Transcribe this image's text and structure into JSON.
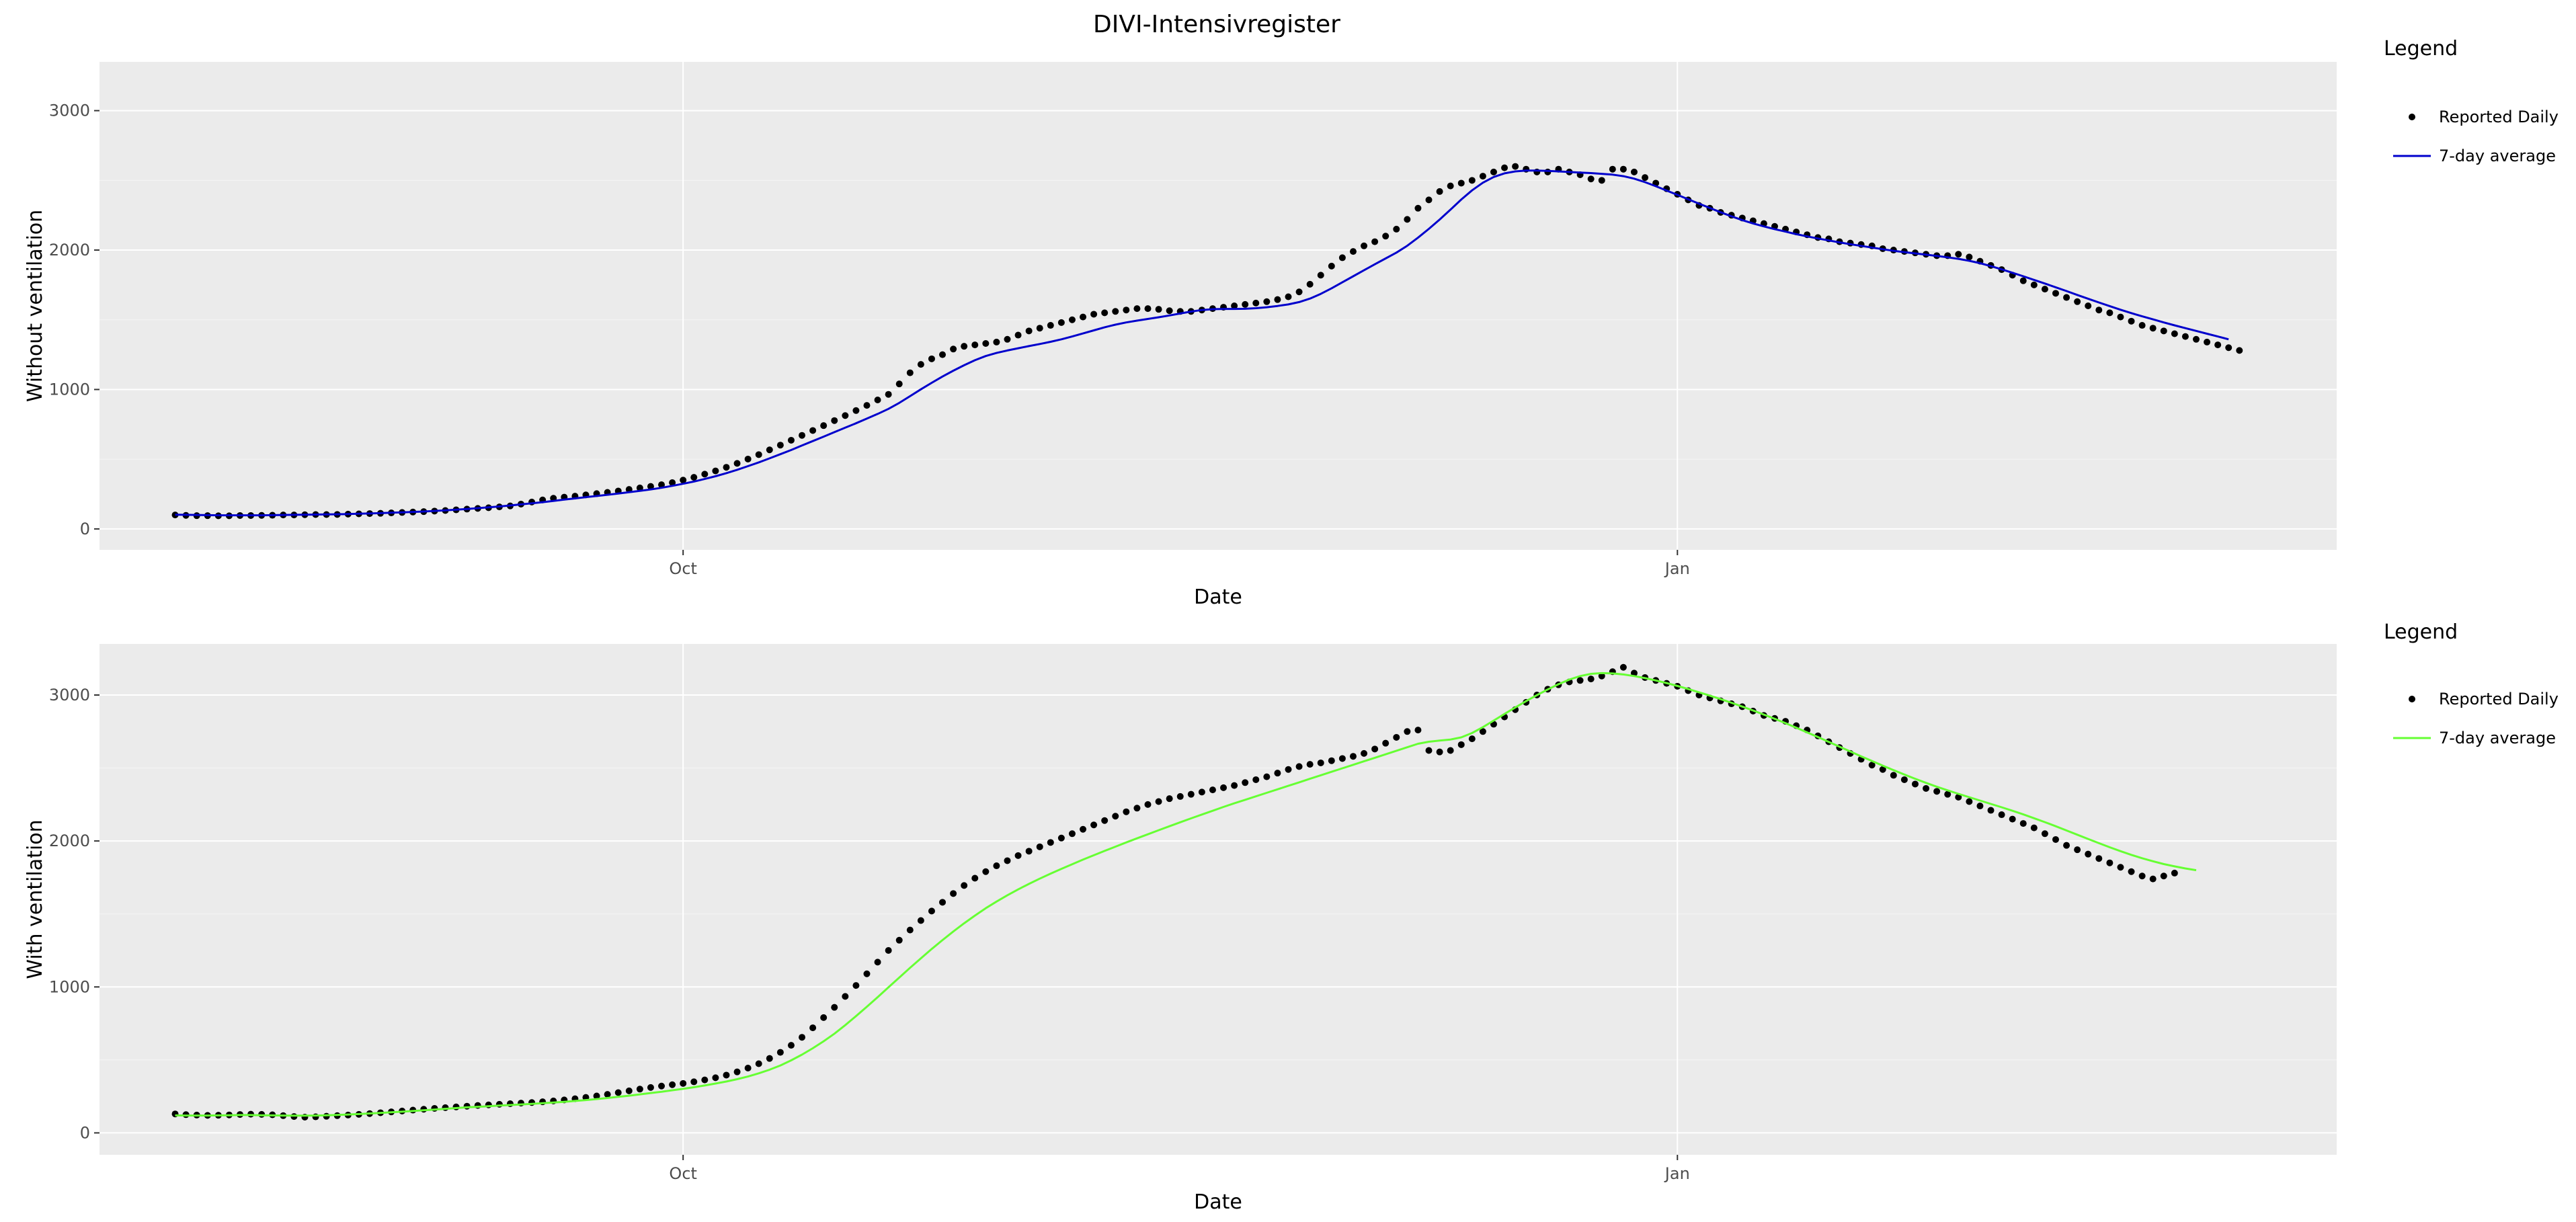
{
  "figure": {
    "title": "DIVI-Intensivregister"
  },
  "chart_data": [
    {
      "type": "scatter",
      "title": "DIVI-Intensivregister",
      "xlabel": "Date",
      "ylabel": "Without ventilation",
      "x_ticks": [
        "Oct",
        "Jan"
      ],
      "y_ticks": [
        0,
        1000,
        2000,
        3000
      ],
      "xlim": [
        "2020-08-08",
        "2021-03-03"
      ],
      "ylim": [
        -150,
        3350
      ],
      "grid": true,
      "legend": {
        "title": "Legend",
        "position": "right"
      },
      "dates": [
        "2020-08-15",
        "2020-08-16",
        "2020-08-17",
        "2020-08-18",
        "2020-08-19",
        "2020-08-20",
        "2020-08-21",
        "2020-08-22",
        "2020-08-23",
        "2020-08-24",
        "2020-08-25",
        "2020-08-26",
        "2020-08-27",
        "2020-08-28",
        "2020-08-29",
        "2020-08-30",
        "2020-08-31",
        "2020-09-01",
        "2020-09-02",
        "2020-09-03",
        "2020-09-04",
        "2020-09-05",
        "2020-09-06",
        "2020-09-07",
        "2020-09-08",
        "2020-09-09",
        "2020-09-10",
        "2020-09-11",
        "2020-09-12",
        "2020-09-13",
        "2020-09-14",
        "2020-09-15",
        "2020-09-16",
        "2020-09-17",
        "2020-09-18",
        "2020-09-19",
        "2020-09-20",
        "2020-09-21",
        "2020-09-22",
        "2020-09-23",
        "2020-09-24",
        "2020-09-25",
        "2020-09-26",
        "2020-09-27",
        "2020-09-28",
        "2020-09-29",
        "2020-09-30",
        "2020-10-01",
        "2020-10-02",
        "2020-10-03",
        "2020-10-04",
        "2020-10-05",
        "2020-10-06",
        "2020-10-07",
        "2020-10-08",
        "2020-10-09",
        "2020-10-10",
        "2020-10-11",
        "2020-10-12",
        "2020-10-13",
        "2020-10-14",
        "2020-10-15",
        "2020-10-16",
        "2020-10-17",
        "2020-10-18",
        "2020-10-19",
        "2020-10-20",
        "2020-10-21",
        "2020-10-22",
        "2020-10-23",
        "2020-10-24",
        "2020-10-25",
        "2020-10-26",
        "2020-10-27",
        "2020-10-28",
        "2020-10-29",
        "2020-10-30",
        "2020-10-31",
        "2020-11-01",
        "2020-11-02",
        "2020-11-03",
        "2020-11-04",
        "2020-11-05",
        "2020-11-06",
        "2020-11-07",
        "2020-11-08",
        "2020-11-09",
        "2020-11-10",
        "2020-11-11",
        "2020-11-12",
        "2020-11-13",
        "2020-11-14",
        "2020-11-15",
        "2020-11-16",
        "2020-11-17",
        "2020-11-18",
        "2020-11-19",
        "2020-11-20",
        "2020-11-21",
        "2020-11-22",
        "2020-11-23",
        "2020-11-24",
        "2020-11-25",
        "2020-11-26",
        "2020-11-27",
        "2020-11-28",
        "2020-11-29",
        "2020-11-30",
        "2020-12-01",
        "2020-12-02",
        "2020-12-03",
        "2020-12-04",
        "2020-12-05",
        "2020-12-06",
        "2020-12-07",
        "2020-12-08",
        "2020-12-09",
        "2020-12-10",
        "2020-12-11",
        "2020-12-12",
        "2020-12-13",
        "2020-12-14",
        "2020-12-15",
        "2020-12-16",
        "2020-12-17",
        "2020-12-18",
        "2020-12-19",
        "2020-12-20",
        "2020-12-21",
        "2020-12-22",
        "2020-12-23",
        "2020-12-24",
        "2020-12-25",
        "2020-12-26",
        "2020-12-27",
        "2020-12-28",
        "2020-12-29",
        "2020-12-30",
        "2020-12-31",
        "2021-01-01",
        "2021-01-02",
        "2021-01-03",
        "2021-01-04",
        "2021-01-05",
        "2021-01-06",
        "2021-01-07",
        "2021-01-08",
        "2021-01-09",
        "2021-01-10",
        "2021-01-11",
        "2021-01-12",
        "2021-01-13",
        "2021-01-14",
        "2021-01-15",
        "2021-01-16",
        "2021-01-17",
        "2021-01-18",
        "2021-01-19",
        "2021-01-20",
        "2021-01-21",
        "2021-01-22",
        "2021-01-23",
        "2021-01-24",
        "2021-01-25",
        "2021-01-26",
        "2021-01-27",
        "2021-01-28",
        "2021-01-29",
        "2021-01-30",
        "2021-01-31",
        "2021-02-01",
        "2021-02-02",
        "2021-02-03",
        "2021-02-04",
        "2021-02-05",
        "2021-02-06",
        "2021-02-07",
        "2021-02-08",
        "2021-02-09",
        "2021-02-10",
        "2021-02-11",
        "2021-02-12",
        "2021-02-13",
        "2021-02-14",
        "2021-02-15",
        "2021-02-16",
        "2021-02-17",
        "2021-02-18",
        "2021-02-19",
        "2021-02-20",
        "2021-02-21",
        "2021-02-22",
        "2021-02-23",
        "2021-02-24",
        "2021-02-25"
      ],
      "series": [
        {
          "name": "Reported Daily",
          "style": "points",
          "color": "#000000",
          "values": [
            100,
            97,
            95,
            95,
            94,
            94,
            96,
            96,
            97,
            98,
            100,
            100,
            102,
            103,
            103,
            104,
            106,
            108,
            110,
            112,
            115,
            118,
            121,
            124,
            128,
            132,
            137,
            142,
            147,
            152,
            158,
            165,
            178,
            193,
            208,
            220,
            228,
            235,
            244,
            253,
            262,
            272,
            283,
            294,
            305,
            317,
            332,
            350,
            370,
            393,
            416,
            442,
            470,
            501,
            533,
            567,
            601,
            636,
            671,
            706,
            741,
            777,
            813,
            849,
            886,
            925,
            965,
            1040,
            1120,
            1180,
            1220,
            1250,
            1290,
            1310,
            1320,
            1330,
            1340,
            1360,
            1390,
            1420,
            1440,
            1460,
            1480,
            1500,
            1520,
            1540,
            1550,
            1560,
            1570,
            1580,
            1580,
            1575,
            1565,
            1560,
            1560,
            1570,
            1580,
            1590,
            1600,
            1610,
            1620,
            1630,
            1645,
            1665,
            1700,
            1755,
            1820,
            1885,
            1945,
            1990,
            2030,
            2060,
            2100,
            2150,
            2220,
            2300,
            2360,
            2420,
            2460,
            2480,
            2500,
            2530,
            2560,
            2590,
            2600,
            2580,
            2560,
            2560,
            2580,
            2560,
            2540,
            2510,
            2500,
            2580,
            2580,
            2560,
            2520,
            2480,
            2440,
            2400,
            2360,
            2320,
            2300,
            2270,
            2250,
            2230,
            2210,
            2190,
            2170,
            2150,
            2130,
            2110,
            2090,
            2080,
            2060,
            2050,
            2040,
            2030,
            2010,
            2000,
            1990,
            1980,
            1970,
            1960,
            1960,
            1970,
            1950,
            1920,
            1890,
            1860,
            1820,
            1780,
            1750,
            1720,
            1690,
            1660,
            1630,
            1600,
            1570,
            1550,
            1520,
            1490,
            1460,
            1440,
            1420,
            1400,
            1380,
            1360,
            1340,
            1320,
            1300,
            1280
          ]
        },
        {
          "name": "7-day average",
          "style": "line",
          "color": "#0000cc",
          "values": [
            102,
            101,
            100,
            99,
            98,
            98,
            98,
            98,
            98,
            99,
            100,
            101,
            102,
            103,
            104,
            105,
            107,
            109,
            111,
            113,
            116,
            119,
            122,
            125,
            129,
            133,
            138,
            143,
            149,
            155,
            161,
            168,
            176,
            184,
            192,
            201,
            210,
            219,
            228,
            236,
            245,
            254,
            263,
            273,
            283,
            295,
            309,
            324,
            340,
            358,
            378,
            400,
            424,
            450,
            477,
            506,
            536,
            566,
            598,
            630,
            662,
            694,
            726,
            758,
            791,
            825,
            861,
            904,
            952,
            1001,
            1048,
            1093,
            1135,
            1174,
            1210,
            1240,
            1262,
            1280,
            1296,
            1311,
            1326,
            1342,
            1360,
            1380,
            1402,
            1424,
            1446,
            1465,
            1481,
            1494,
            1506,
            1518,
            1531,
            1545,
            1559,
            1570,
            1576,
            1578,
            1578,
            1579,
            1583,
            1590,
            1599,
            1610,
            1627,
            1652,
            1686,
            1726,
            1769,
            1812,
            1855,
            1898,
            1940,
            1982,
            2031,
            2089,
            2152,
            2219,
            2290,
            2362,
            2428,
            2483,
            2524,
            2550,
            2564,
            2570,
            2570,
            2568,
            2564,
            2560,
            2556,
            2552,
            2547,
            2541,
            2530,
            2512,
            2487,
            2458,
            2427,
            2396,
            2364,
            2333,
            2302,
            2271,
            2242,
            2215,
            2191,
            2170,
            2150,
            2132,
            2114,
            2098,
            2083,
            2069,
            2055,
            2042,
            2030,
            2018,
            2006,
            1995,
            1985,
            1976,
            1967,
            1958,
            1948,
            1937,
            1923,
            1906,
            1885,
            1862,
            1837,
            1812,
            1786,
            1760,
            1733,
            1706,
            1678,
            1651,
            1624,
            1598,
            1572,
            1548,
            1525,
            1503,
            1481,
            1460,
            1440,
            1420,
            1400,
            1380,
            1360
          ]
        }
      ]
    },
    {
      "type": "scatter",
      "xlabel": "Date",
      "ylabel": "With ventilation",
      "x_ticks": [
        "Oct",
        "Jan"
      ],
      "y_ticks": [
        0,
        1000,
        2000,
        3000
      ],
      "xlim": [
        "2020-08-08",
        "2021-03-03"
      ],
      "ylim": [
        -150,
        3350
      ],
      "grid": true,
      "legend": {
        "title": "Legend",
        "position": "right"
      },
      "series": [
        {
          "name": "Reported Daily",
          "style": "points",
          "color": "#000000",
          "values": [
            130,
            125,
            122,
            120,
            121,
            123,
            126,
            128,
            127,
            124,
            118,
            112,
            108,
            110,
            114,
            118,
            122,
            127,
            132,
            138,
            144,
            150,
            156,
            162,
            168,
            173,
            178,
            183,
            188,
            192,
            196,
            200,
            204,
            208,
            213,
            219,
            226,
            234,
            243,
            253,
            264,
            276,
            288,
            300,
            311,
            321,
            330,
            339,
            350,
            363,
            378,
            396,
            418,
            444,
            474,
            510,
            552,
            600,
            655,
            720,
            790,
            860,
            935,
            1010,
            1090,
            1170,
            1250,
            1320,
            1390,
            1455,
            1520,
            1580,
            1640,
            1695,
            1745,
            1790,
            1830,
            1865,
            1900,
            1930,
            1960,
            1990,
            2020,
            2050,
            2080,
            2110,
            2140,
            2170,
            2200,
            2225,
            2250,
            2270,
            2290,
            2305,
            2320,
            2335,
            2350,
            2365,
            2380,
            2400,
            2420,
            2440,
            2465,
            2490,
            2510,
            2525,
            2535,
            2550,
            2565,
            2580,
            2600,
            2630,
            2670,
            2710,
            2750,
            2760,
            2620,
            2610,
            2620,
            2660,
            2700,
            2750,
            2800,
            2850,
            2900,
            2950,
            3000,
            3040,
            3070,
            3090,
            3100,
            3110,
            3130,
            3160,
            3190,
            3150,
            3120,
            3100,
            3080,
            3060,
            3030,
            3000,
            2980,
            2960,
            2940,
            2920,
            2890,
            2860,
            2840,
            2820,
            2790,
            2760,
            2720,
            2680,
            2640,
            2600,
            2560,
            2520,
            2490,
            2450,
            2420,
            2390,
            2360,
            2340,
            2320,
            2300,
            2270,
            2240,
            2210,
            2180,
            2150,
            2120,
            2090,
            2050,
            2010,
            1970,
            1940,
            1910,
            1880,
            1850,
            1820,
            1790,
            1760,
            1740,
            1760,
            1780
          ]
        },
        {
          "name": "7-day average",
          "style": "line",
          "color": "#66ff33",
          "values": [
            120,
            119,
            119,
            119,
            120,
            121,
            122,
            122,
            121,
            120,
            119,
            118,
            118,
            119,
            121,
            123,
            126,
            129,
            133,
            137,
            141,
            145,
            150,
            155,
            160,
            165,
            170,
            175,
            179,
            183,
            187,
            191,
            195,
            199,
            203,
            208,
            213,
            219,
            225,
            232,
            239,
            247,
            255,
            264,
            273,
            282,
            292,
            302,
            313,
            325,
            338,
            352,
            368,
            386,
            408,
            433,
            462,
            497,
            536,
            580,
            628,
            680,
            738,
            800,
            864,
            930,
            997,
            1064,
            1131,
            1196,
            1260,
            1321,
            1380,
            1436,
            1489,
            1539,
            1585,
            1628,
            1668,
            1706,
            1742,
            1776,
            1809,
            1841,
            1872,
            1902,
            1932,
            1961,
            1990,
            2018,
            2046,
            2074,
            2101,
            2128,
            2155,
            2181,
            2207,
            2233,
            2258,
            2282,
            2306,
            2330,
            2354,
            2378,
            2402,
            2426,
            2450,
            2474,
            2498,
            2522,
            2546,
            2570,
            2594,
            2618,
            2642,
            2666,
            2680,
            2688,
            2695,
            2710,
            2740,
            2780,
            2825,
            2870,
            2915,
            2958,
            2999,
            3038,
            3074,
            3106,
            3130,
            3145,
            3150,
            3148,
            3141,
            3130,
            3116,
            3100,
            3082,
            3062,
            3041,
            3019,
            2996,
            2972,
            2947,
            2921,
            2894,
            2866,
            2837,
            2807,
            2776,
            2744,
            2712,
            2679,
            2646,
            2613,
            2580,
            2548,
            2516,
            2485,
            2455,
            2426,
            2398,
            2372,
            2347,
            2323,
            2300,
            2277,
            2254,
            2231,
            2207,
            2182,
            2156,
            2129,
            2101,
            2072,
            2043,
            2014,
            1985,
            1957,
            1930,
            1905,
            1882,
            1861,
            1842,
            1826,
            1812,
            1800
          ]
        }
      ]
    }
  ]
}
